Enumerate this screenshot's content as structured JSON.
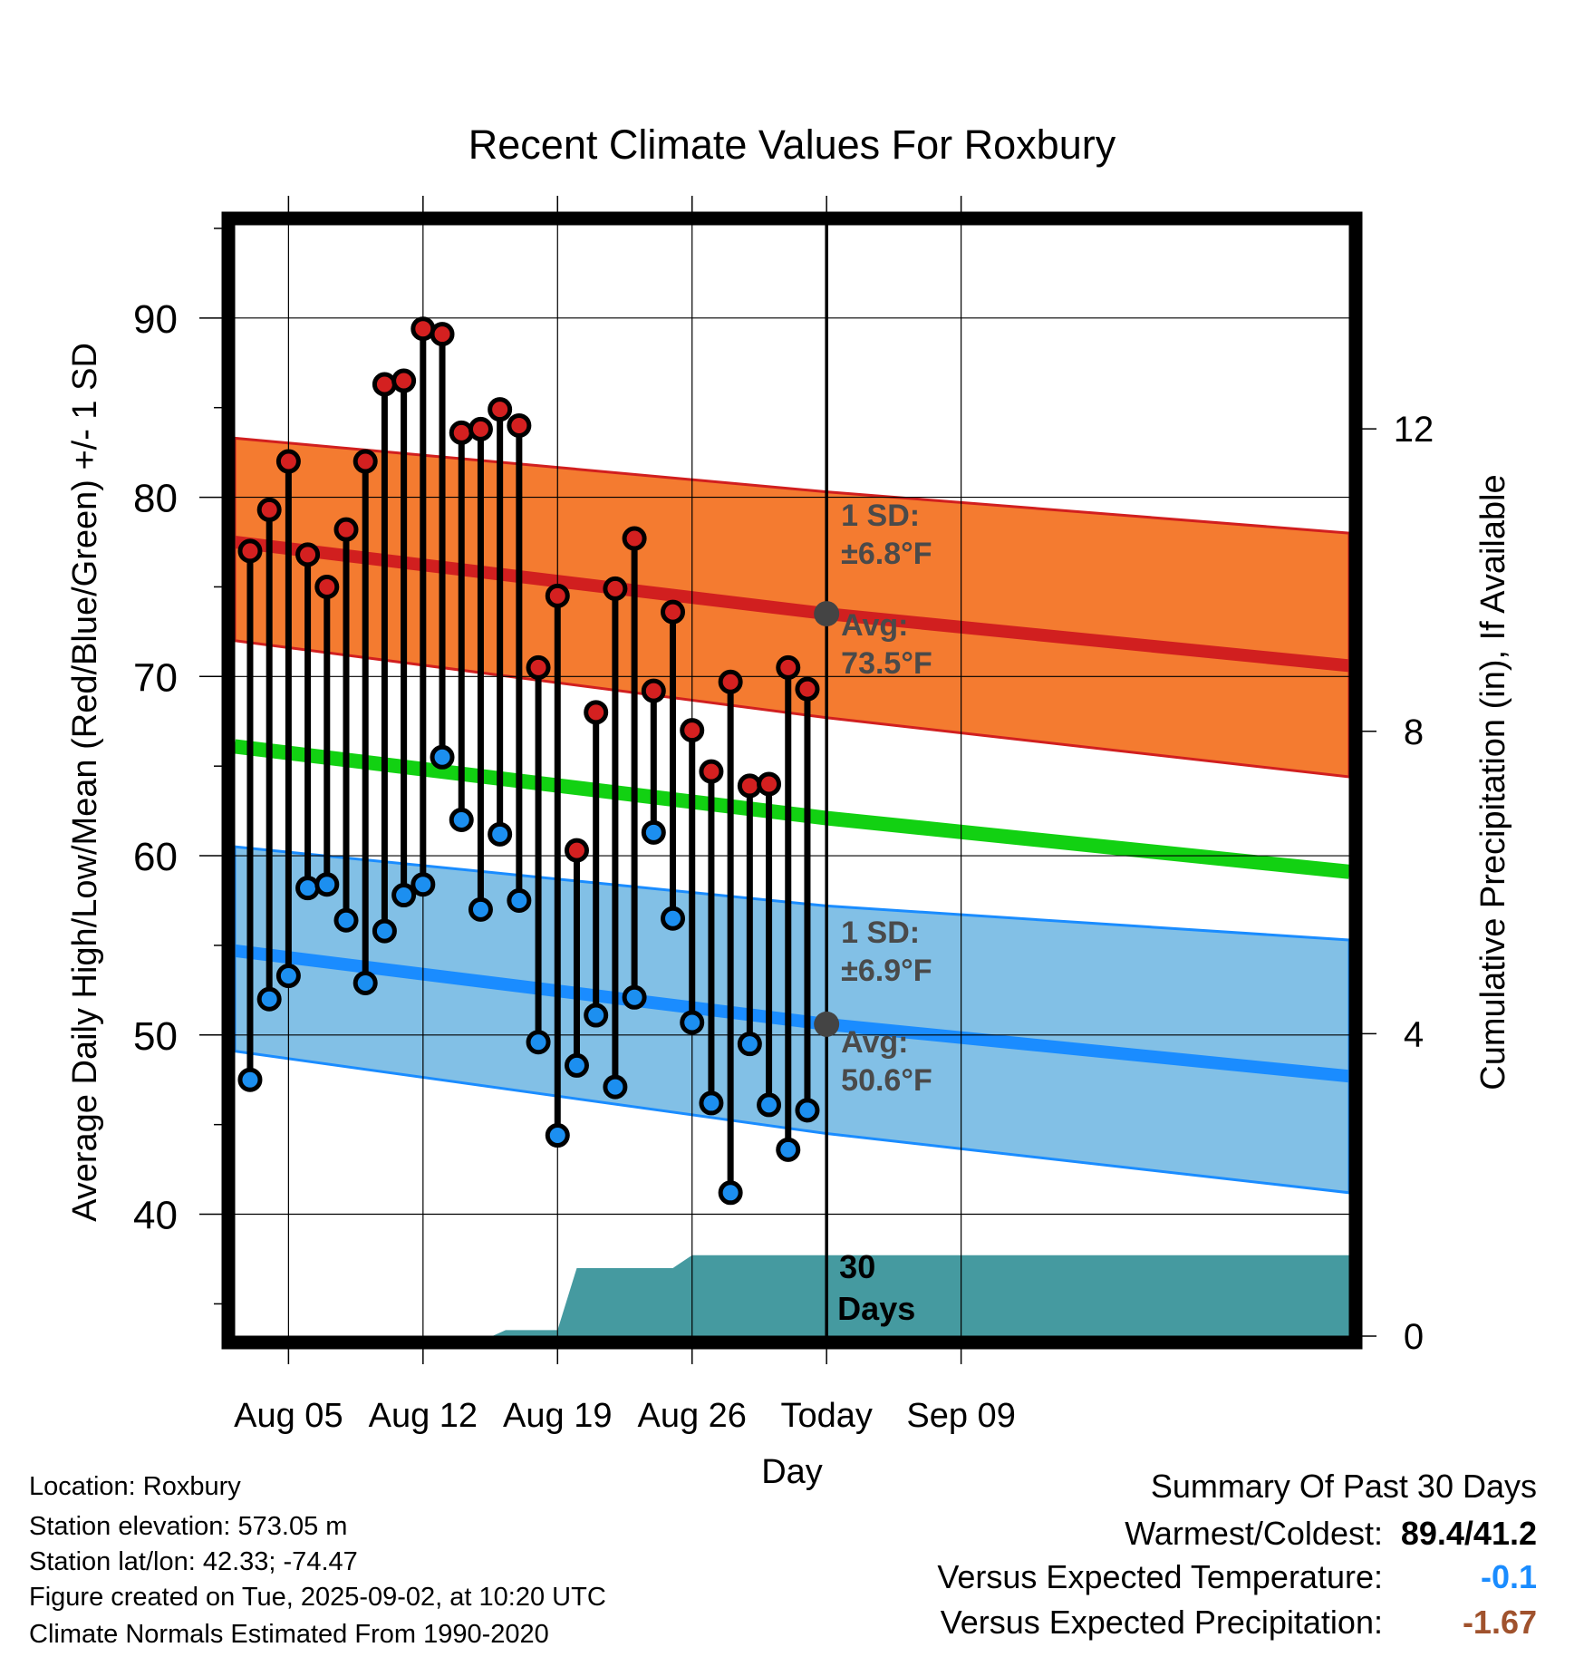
{
  "chart_data": {
    "type": "line",
    "title": "Recent Climate Values For Roxbury",
    "xlabel": "Day",
    "ylabel": "Average Daily High/Low/Mean (Red/Blue/Green) +/- 1 SD",
    "y2label": "Cumulative Precipitation (in), If Available",
    "ylim": [
      33.2,
      95.2
    ],
    "y2lim": [
      0,
      14.7
    ],
    "xlim": [
      2.2,
      60.2
    ],
    "x_ticks": [
      {
        "x": 5,
        "label": "Aug 05"
      },
      {
        "x": 12,
        "label": "Aug 12"
      },
      {
        "x": 19,
        "label": "Aug 19"
      },
      {
        "x": 26,
        "label": "Aug 26"
      },
      {
        "x": 33,
        "label": "Today"
      },
      {
        "x": 40,
        "label": "Sep 09"
      }
    ],
    "x_units": "day of August",
    "y_ticks": [
      40,
      50,
      60,
      70,
      80,
      90
    ],
    "y2_ticks": [
      0,
      4,
      8,
      12
    ],
    "grid": true,
    "today_x": 33,
    "observed": {
      "days": [
        3,
        4,
        5,
        6,
        7,
        8,
        9,
        10,
        11,
        12,
        13,
        14,
        15,
        16,
        17,
        18,
        19,
        20,
        21,
        22,
        23,
        24,
        25,
        26,
        27,
        28,
        29,
        30,
        31,
        32
      ],
      "highs": [
        77.0,
        79.3,
        82.0,
        76.8,
        75.0,
        78.2,
        82.0,
        86.3,
        86.5,
        89.4,
        89.1,
        83.6,
        83.8,
        84.9,
        84.0,
        70.5,
        74.5,
        60.3,
        68.0,
        74.9,
        77.7,
        69.2,
        73.6,
        67.0,
        64.7,
        69.7,
        63.9,
        64.0,
        70.5,
        69.3
      ],
      "lows": [
        47.5,
        52.0,
        53.3,
        58.2,
        58.4,
        56.4,
        52.9,
        55.8,
        57.8,
        58.4,
        65.5,
        62.0,
        57.0,
        61.2,
        57.5,
        49.6,
        44.4,
        48.3,
        51.1,
        47.1,
        52.1,
        61.3,
        56.5,
        50.7,
        46.2,
        41.2,
        49.5,
        46.1,
        43.6,
        45.8
      ]
    },
    "normal_high": {
      "x": [
        2.2,
        33,
        60.2
      ],
      "mean": [
        77.5,
        73.5,
        70.6
      ],
      "upper": [
        83.3,
        80.3,
        78.0
      ],
      "lower": [
        72.0,
        67.7,
        64.4
      ]
    },
    "normal_low": {
      "x": [
        2.2,
        33,
        60.2
      ],
      "mean": [
        54.7,
        50.6,
        47.7
      ],
      "upper": [
        60.5,
        57.2,
        55.3
      ],
      "lower": [
        49.1,
        44.5,
        41.2
      ]
    },
    "normal_mean": {
      "x": [
        2.2,
        33,
        60.2
      ],
      "values": [
        66.1,
        62.1,
        59.1
      ]
    },
    "precip_cumulative": {
      "x": [
        2.2,
        15.6,
        16.3,
        19.0,
        20.0,
        25.0,
        26.0,
        27.0,
        60.2
      ],
      "values": [
        0,
        0,
        0.08,
        0.08,
        0.9,
        0.9,
        1.07,
        1.07,
        1.07
      ]
    },
    "annotations": {
      "high_sd_title": "1 SD:",
      "high_sd_value": "±6.8°F",
      "high_avg_title": "Avg:",
      "high_avg_value": "73.5°F",
      "low_sd_title": "1 SD:",
      "low_sd_value": "±6.9°F",
      "low_avg_title": "Avg:",
      "low_avg_value": "50.6°F",
      "days_number": "30",
      "days_word": "Days"
    },
    "colors": {
      "high_band": "#f47b30",
      "high_line": "#d11f1f",
      "low_band": "#82c0e6",
      "low_line": "#1a8cff",
      "mean_line": "#12d112",
      "precip": "#459aa0",
      "high_marker": "#d42020",
      "low_marker": "#1c8ff0",
      "avg_marker": "#444444",
      "annotation_text": "#4a4a4a"
    }
  },
  "info": {
    "location": "Location: Roxbury",
    "elevation": "Station elevation: 573.05 m",
    "latlon": "Station lat/lon: 42.33; -74.47",
    "created": "Figure created on Tue, 2025-09-02, at 10:20 UTC",
    "normals": "Climate Normals Estimated From 1990-2020"
  },
  "summary": {
    "title": "Summary Of Past 30 Days",
    "warmest_label": "Warmest/Coldest:",
    "warmest_value": "89.4/41.2",
    "temp_label": "Versus Expected Temperature:",
    "temp_value": "-0.1",
    "temp_color": "#1a8cff",
    "precip_label": "Versus Expected Precipitation:",
    "precip_value": "-1.67",
    "precip_color": "#a0522d"
  }
}
